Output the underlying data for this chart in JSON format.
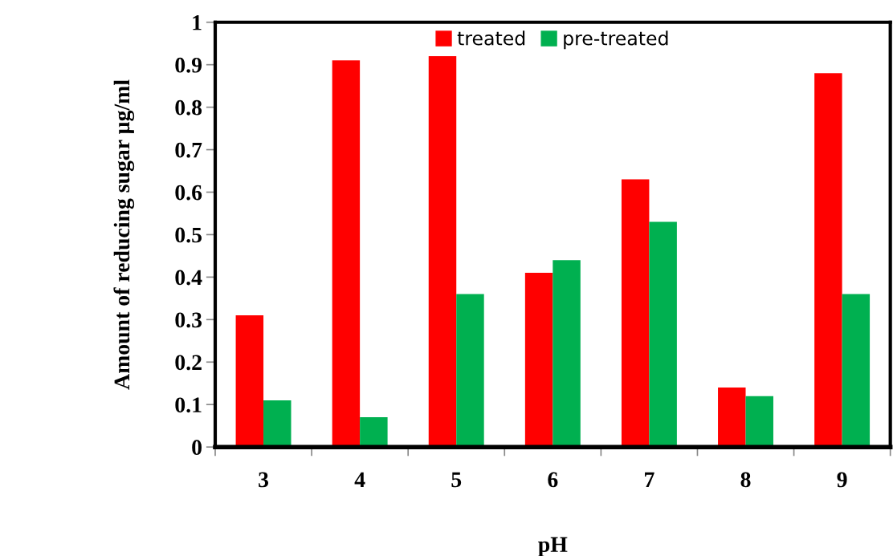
{
  "chart_data": {
    "type": "bar",
    "xlabel": "pH",
    "ylabel": "Amount of reducing sugar µg/ml",
    "categories": [
      "3",
      "4",
      "5",
      "6",
      "7",
      "8",
      "9"
    ],
    "series": [
      {
        "name": "treated",
        "color": "#ff0000",
        "values": [
          0.31,
          0.91,
          0.92,
          0.41,
          0.63,
          0.14,
          0.88
        ]
      },
      {
        "name": "pre-treated",
        "color": "#00b050",
        "values": [
          0.11,
          0.07,
          0.36,
          0.44,
          0.53,
          0.12,
          0.36
        ]
      }
    ],
    "ylim": [
      0,
      1
    ],
    "yticks": [
      0,
      0.1,
      0.2,
      0.3,
      0.4,
      0.5,
      0.6,
      0.7,
      0.8,
      0.9,
      1
    ],
    "grid": false,
    "legend": "top"
  }
}
